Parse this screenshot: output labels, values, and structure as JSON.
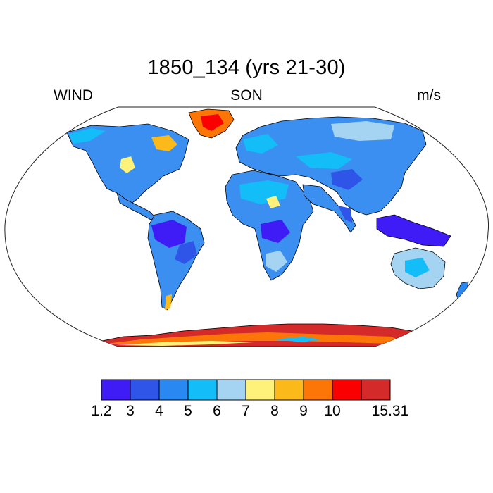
{
  "title": "1850_134 (yrs 21-30)",
  "left_label": "WIND",
  "center_label": "SON",
  "right_label": "m/s",
  "colorbar": {
    "levels": [
      "1.2",
      "3",
      "4",
      "5",
      "6",
      "7",
      "8",
      "9",
      "10",
      "15.31"
    ],
    "colors": [
      "#3f1cf5",
      "#2e55e8",
      "#2a88f2",
      "#13bdf7",
      "#a5d4f3",
      "#fff27a",
      "#fbb91a",
      "#fb7606",
      "#fb0000",
      "#d42a2a"
    ]
  },
  "colors": {
    "land_base": "#3b8ff0",
    "background": "#ffffff",
    "outline": "#000000"
  }
}
